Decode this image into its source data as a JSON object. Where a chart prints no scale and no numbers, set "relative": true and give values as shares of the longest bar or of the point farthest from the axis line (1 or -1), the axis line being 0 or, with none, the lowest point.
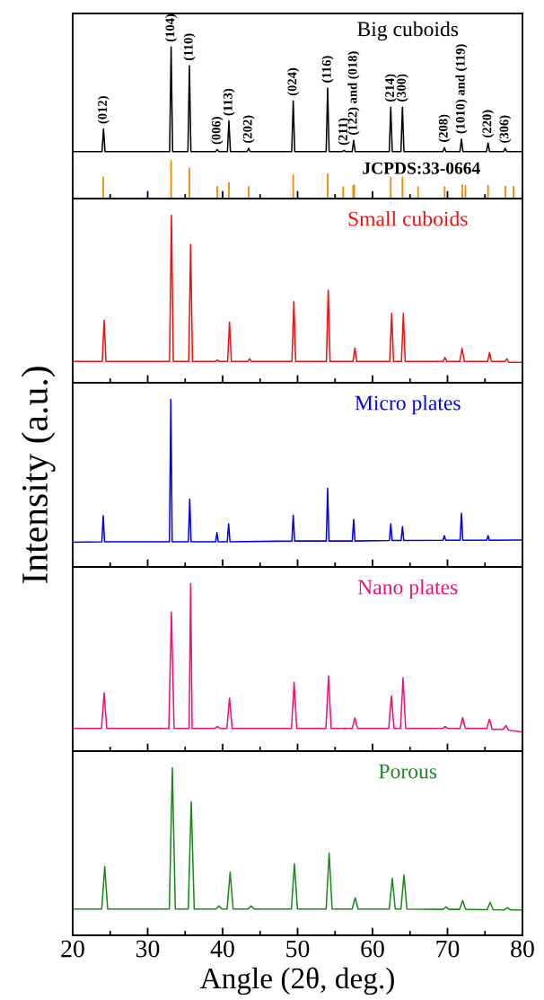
{
  "chart_data": [
    {
      "type": "line",
      "title": "Big cuboids",
      "relative": true,
      "xlim": [
        20,
        80
      ],
      "tick_labels": false,
      "series": [
        {
          "color": "#000000",
          "x": [
            20,
            23.91,
            24.11,
            24.31,
            32.93,
            33.13,
            33.33,
            35.37,
            35.57,
            35.77,
            39.08,
            39.28,
            39.48,
            40.64,
            40.84,
            41.04,
            43.27,
            43.47,
            43.67,
            49.22,
            49.42,
            49.62,
            53.81,
            54.01,
            54.21,
            56.0,
            56.2,
            56.4,
            57.28,
            57.48,
            57.68,
            62.23,
            62.43,
            62.63,
            63.79,
            63.99,
            64.19,
            69.38,
            69.58,
            69.78,
            71.66,
            71.86,
            72.06,
            75.21,
            75.41,
            75.61,
            77.49,
            77.69,
            77.89,
            80
          ],
          "values": [
            0.067,
            0.067,
            0.268,
            0.067,
            0.067,
            1.0,
            0.067,
            0.067,
            0.833,
            0.067,
            0.067,
            0.084,
            0.067,
            0.067,
            0.34,
            0.067,
            0.067,
            0.096,
            0.067,
            0.067,
            0.519,
            0.067,
            0.067,
            0.634,
            0.067,
            0.067,
            0.077,
            0.067,
            0.067,
            0.167,
            0.067,
            0.067,
            0.464,
            0.067,
            0.067,
            0.464,
            0.067,
            0.067,
            0.103,
            0.067,
            0.067,
            0.179,
            0.067,
            0.067,
            0.144,
            0.067,
            0.067,
            0.096,
            0.067,
            0.067
          ]
        }
      ],
      "annotations": [
        {
          "text": "(012)",
          "x": 24.11,
          "y": 0.268
        },
        {
          "text": "(104)",
          "x": 33.13,
          "y": 1.0
        },
        {
          "text": "(110)",
          "x": 35.57,
          "y": 0.833
        },
        {
          "text": "(006)",
          "x": 39.28,
          "y": 0.084
        },
        {
          "text": "(113)",
          "x": 40.84,
          "y": 0.34
        },
        {
          "text": "(202)",
          "x": 43.47,
          "y": 0.096
        },
        {
          "text": "(024)",
          "x": 49.42,
          "y": 0.519
        },
        {
          "text": "(116)",
          "x": 54.01,
          "y": 0.634
        },
        {
          "text": "(211)",
          "x": 56.2,
          "y": 0.077
        },
        {
          "text": "(122) and (018)",
          "x": 57.48,
          "y": 0.167
        },
        {
          "text": "(214)",
          "x": 62.43,
          "y": 0.464
        },
        {
          "text": "(300)",
          "x": 63.99,
          "y": 0.464
        },
        {
          "text": "(208)",
          "x": 69.58,
          "y": 0.103
        },
        {
          "text": "(1010) and (119)",
          "x": 71.86,
          "y": 0.179
        },
        {
          "text": "(220)",
          "x": 75.41,
          "y": 0.144
        },
        {
          "text": "(306)",
          "x": 77.69,
          "y": 0.096
        }
      ]
    },
    {
      "type": "bar",
      "title": "JCPDS:33-0664",
      "relative": true,
      "xlim": [
        20,
        80
      ],
      "xticks": [
        20,
        {
          "value": 25,
          "label": null
        },
        30,
        {
          "value": 35,
          "label": null
        },
        40,
        {
          "value": 45,
          "label": null
        },
        50,
        {
          "value": 55,
          "label": null
        },
        60,
        {
          "value": 65,
          "label": null
        },
        70,
        {
          "value": 75,
          "label": null
        },
        80
      ],
      "tick_labels": false,
      "series": [
        {
          "color": "#f08a00",
          "x": [
            24.07,
            33.13,
            35.57,
            39.28,
            40.84,
            43.47,
            49.42,
            54.01,
            56.09,
            57.42,
            57.56,
            62.43,
            63.99,
            66.07,
            69.62,
            71.98,
            72.38,
            75.41,
            77.73,
            78.8
          ],
          "values": [
            0.57,
            1.0,
            0.8,
            0.32,
            0.42,
            0.32,
            0.62,
            0.65,
            0.32,
            0.35,
            0.37,
            0.57,
            0.57,
            0.32,
            0.32,
            0.37,
            0.35,
            0.35,
            0.33,
            0.32
          ]
        }
      ]
    },
    {
      "type": "line",
      "title": "Small cuboids",
      "relative": true,
      "xlim": [
        20,
        80
      ],
      "xticks": [
        20,
        {
          "value": 25,
          "label": null
        },
        30,
        {
          "value": 35,
          "label": null
        },
        40,
        {
          "value": 45,
          "label": null
        },
        50,
        {
          "value": 55,
          "label": null
        },
        60,
        {
          "value": 65,
          "label": null
        },
        70,
        {
          "value": 75,
          "label": null
        },
        80
      ],
      "tick_labels": false,
      "series": [
        {
          "color": "#ee1111",
          "x": [
            20,
            23.94,
            24.19,
            24.44,
            32.92,
            33.17,
            33.42,
            35.48,
            35.73,
            35.98,
            39.04,
            39.29,
            39.54,
            40.67,
            40.92,
            41.17,
            43.35,
            43.6,
            43.85,
            49.25,
            49.5,
            49.75,
            53.84,
            54.09,
            54.34,
            57.39,
            57.64,
            57.89,
            62.3,
            62.55,
            62.8,
            63.86,
            64.11,
            64.36,
            69.41,
            69.66,
            69.91,
            71.64,
            71.94,
            72.24,
            75.36,
            75.61,
            75.86,
            77.67,
            77.92,
            78.17,
            80
          ],
          "values": [
            0.127,
            0.127,
            0.373,
            0.127,
            0.127,
            1.0,
            0.127,
            0.127,
            0.826,
            0.127,
            0.127,
            0.136,
            0.127,
            0.127,
            0.362,
            0.127,
            0.127,
            0.143,
            0.127,
            0.127,
            0.484,
            0.127,
            0.127,
            0.552,
            0.127,
            0.127,
            0.208,
            0.127,
            0.127,
            0.414,
            0.127,
            0.127,
            0.414,
            0.127,
            0.127,
            0.151,
            0.127,
            0.127,
            0.206,
            0.127,
            0.127,
            0.181,
            0.127,
            0.127,
            0.143,
            0.122,
            0.122
          ]
        }
      ]
    },
    {
      "type": "line",
      "title": "Micro plates",
      "ylabel": "Intensity (a.u.)",
      "relative": true,
      "xlim": [
        20,
        80
      ],
      "xticks": [
        20,
        {
          "value": 25,
          "label": null
        },
        30,
        {
          "value": 35,
          "label": null
        },
        40,
        {
          "value": 45,
          "label": null
        },
        50,
        {
          "value": 55,
          "label": null
        },
        60,
        {
          "value": 65,
          "label": null
        },
        70,
        {
          "value": 75,
          "label": null
        },
        80
      ],
      "tick_labels": false,
      "series": [
        {
          "color": "#0000ee",
          "x": [
            20,
            23.89,
            24.07,
            24.25,
            32.91,
            33.09,
            33.27,
            35.43,
            35.61,
            35.79,
            39.06,
            39.24,
            39.42,
            40.62,
            40.8,
            40.98,
            49.24,
            49.42,
            49.6,
            53.83,
            54.01,
            54.19,
            57.3,
            57.48,
            57.66,
            62.25,
            62.43,
            62.61,
            63.81,
            63.99,
            64.17,
            69.4,
            69.58,
            69.76,
            71.68,
            71.86,
            72.04,
            75.23,
            75.41,
            75.59,
            80
          ],
          "values": [
            0.148,
            0.15,
            0.306,
            0.15,
            0.15,
            1.0,
            0.15,
            0.15,
            0.405,
            0.15,
            0.15,
            0.205,
            0.15,
            0.15,
            0.257,
            0.15,
            0.155,
            0.309,
            0.155,
            0.155,
            0.469,
            0.155,
            0.155,
            0.283,
            0.155,
            0.158,
            0.257,
            0.158,
            0.158,
            0.241,
            0.158,
            0.16,
            0.186,
            0.16,
            0.16,
            0.321,
            0.16,
            0.16,
            0.186,
            0.16,
            0.161
          ]
        }
      ]
    },
    {
      "type": "line",
      "title": "Nano plates",
      "relative": true,
      "xlim": [
        20,
        80
      ],
      "xticks": [
        20,
        {
          "value": 25,
          "label": null
        },
        30,
        {
          "value": 35,
          "label": null
        },
        40,
        {
          "value": 45,
          "label": null
        },
        50,
        {
          "value": 55,
          "label": null
        },
        60,
        {
          "value": 65,
          "label": null
        },
        70,
        {
          "value": 75,
          "label": null
        },
        80
      ],
      "tick_labels": false,
      "series": [
        {
          "color": "#ee1177",
          "x": [
            20,
            23.84,
            24.19,
            24.54,
            32.82,
            33.17,
            33.52,
            35.53,
            35.73,
            35.93,
            38.95,
            39.3,
            39.65,
            40.57,
            40.92,
            41.27,
            49.19,
            49.54,
            49.89,
            53.78,
            54.13,
            54.48,
            57.29,
            57.64,
            57.99,
            62.16,
            62.51,
            62.86,
            63.72,
            64.07,
            64.42,
            69.35,
            69.7,
            70.05,
            71.67,
            72.02,
            72.37,
            75.25,
            75.6,
            75.95,
            77.45,
            77.8,
            78.15,
            80
          ],
          "values": [
            0.136,
            0.136,
            0.347,
            0.136,
            0.136,
            0.83,
            0.136,
            0.136,
            1.0,
            0.136,
            0.136,
            0.147,
            0.136,
            0.136,
            0.317,
            0.136,
            0.136,
            0.41,
            0.136,
            0.136,
            0.449,
            0.136,
            0.136,
            0.199,
            0.136,
            0.136,
            0.329,
            0.136,
            0.136,
            0.437,
            0.136,
            0.136,
            0.147,
            0.136,
            0.136,
            0.2,
            0.136,
            0.136,
            0.191,
            0.13,
            0.13,
            0.154,
            0.125,
            0.114
          ]
        }
      ]
    },
    {
      "type": "line",
      "title": "Porous",
      "xlabel": "Angle (2θ, deg.)",
      "relative": true,
      "xlim": [
        20,
        80
      ],
      "xticks": [
        20,
        {
          "value": 25,
          "label": null
        },
        30,
        {
          "value": 35,
          "label": null
        },
        40,
        {
          "value": 45,
          "label": null
        },
        50,
        {
          "value": 55,
          "label": null
        },
        60,
        {
          "value": 65,
          "label": null
        },
        70,
        {
          "value": 75,
          "label": null
        },
        80
      ],
      "tick_labels": "x",
      "series": [
        {
          "color": "#1a8a1a",
          "x": [
            20,
            23.87,
            24.27,
            24.67,
            32.89,
            33.29,
            33.69,
            35.41,
            35.81,
            36.21,
            39.1,
            39.5,
            39.9,
            40.6,
            41.0,
            41.4,
            43.4,
            43.8,
            44.2,
            49.18,
            49.58,
            49.98,
            53.81,
            54.21,
            54.61,
            57.28,
            57.68,
            58.08,
            62.23,
            62.63,
            63.03,
            63.79,
            64.19,
            64.59,
            69.4,
            69.8,
            70.2,
            71.62,
            72.02,
            72.42,
            75.29,
            75.69,
            76.09,
            77.6,
            78.0,
            78.4,
            80
          ],
          "values": [
            0.157,
            0.157,
            0.41,
            0.157,
            0.157,
            1.0,
            0.157,
            0.157,
            0.798,
            0.157,
            0.157,
            0.175,
            0.157,
            0.157,
            0.377,
            0.157,
            0.157,
            0.175,
            0.157,
            0.157,
            0.428,
            0.157,
            0.157,
            0.491,
            0.157,
            0.157,
            0.224,
            0.157,
            0.157,
            0.341,
            0.157,
            0.157,
            0.361,
            0.157,
            0.155,
            0.17,
            0.155,
            0.155,
            0.208,
            0.155,
            0.153,
            0.197,
            0.153,
            0.152,
            0.166,
            0.152,
            0.152
          ]
        }
      ]
    }
  ]
}
